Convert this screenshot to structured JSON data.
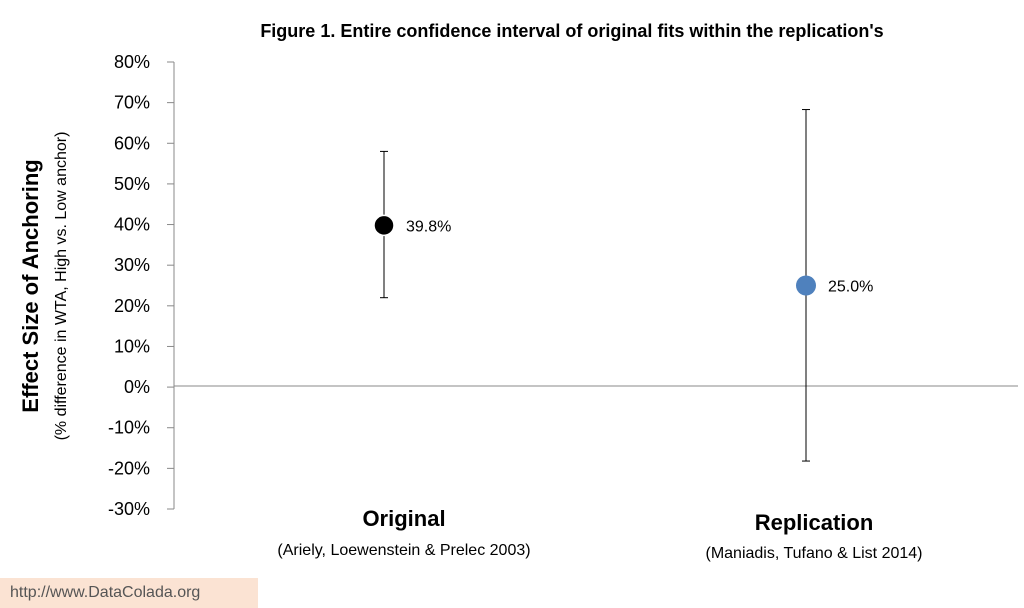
{
  "chart_data": {
    "type": "scatter",
    "title": "Figure 1. Entire confidence interval of original fits within the replication's",
    "ylabel": "Effect Size of Anchoring",
    "ylabel_sub": "(% difference in WTA, High vs. Low anchor)",
    "ylim": [
      -30,
      80
    ],
    "yticks": [
      80,
      70,
      60,
      50,
      40,
      30,
      20,
      10,
      0,
      -10,
      -20,
      -30
    ],
    "ytick_labels": [
      "80%",
      "70%",
      "60%",
      "50%",
      "40%",
      "30%",
      "20%",
      "10%",
      "0%",
      "-10%",
      "-20%",
      "-30%"
    ],
    "categories": [
      "Original",
      "Replication"
    ],
    "category_subs": [
      "(Ariely, Loewenstein & Prelec 2003)",
      "(Maniadis, Tufano & List 2014)"
    ],
    "points": [
      {
        "category": "Original",
        "value": 39.8,
        "ci_low": 22,
        "ci_high": 58,
        "label": "39.8%",
        "color": "#000000"
      },
      {
        "category": "Replication",
        "value": 25.0,
        "ci_low": -18.2,
        "ci_high": 68.3,
        "label": "25.0%",
        "color": "#4f81bd"
      }
    ],
    "grid": false,
    "zero_line": true
  },
  "watermark": "http://www.DataColada.org"
}
